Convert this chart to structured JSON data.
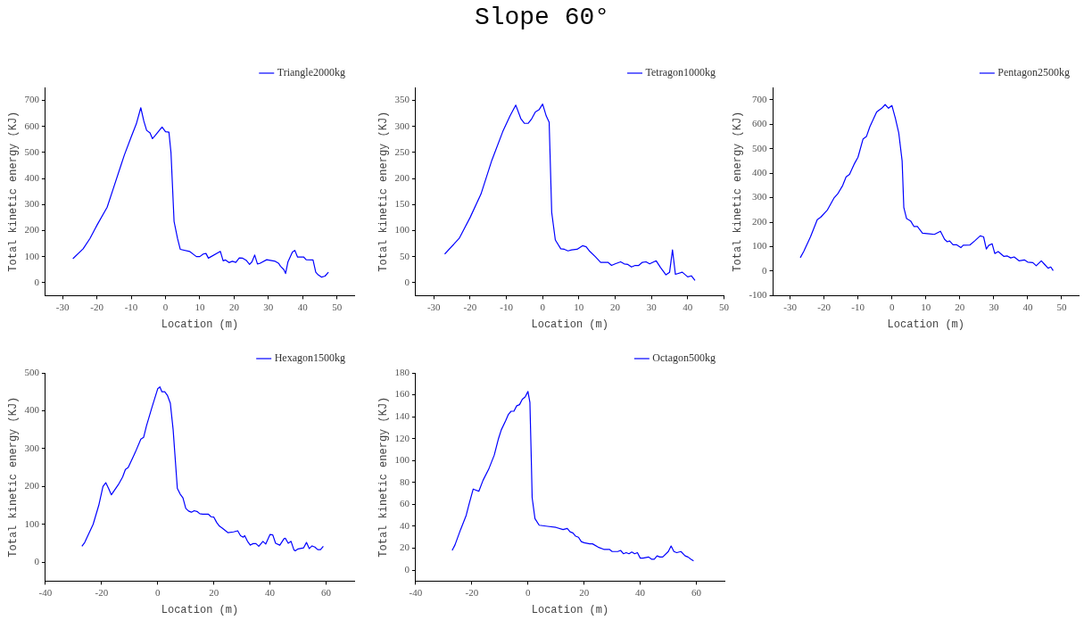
{
  "chart_data": [
    {
      "type": "line",
      "xlabel": "Location (m)",
      "ylabel": "Total kinetic energy (KJ)",
      "xlim": [
        -35,
        55
      ],
      "xticks": [
        -30,
        -20,
        -10,
        0,
        10,
        20,
        30,
        40,
        50
      ],
      "ylim": [
        -50,
        750
      ],
      "yticks": [
        0,
        100,
        200,
        300,
        400,
        500,
        600,
        700
      ],
      "grid": false,
      "legend": "top right",
      "marker": "none",
      "line_style": "solid",
      "series": [
        {
          "name": "Triangle2000kg",
          "color": "#0000ff",
          "x": [
            -27,
            -24,
            -22,
            -20,
            -17,
            -15,
            -13,
            -12,
            -10,
            -8.5,
            -7.2,
            -6.3,
            -5.5,
            -4.5,
            -3.8,
            -3,
            -1,
            0,
            1,
            1.6,
            2.5,
            3.5,
            4.3,
            7,
            9,
            10,
            11,
            11.8,
            12.5,
            16,
            16.8,
            17.5,
            18.5,
            19.5,
            20.5,
            21.5,
            22.5,
            23.5,
            24.5,
            25.2,
            26,
            26.8,
            27.5,
            29.5,
            32,
            33,
            33.5,
            34.5,
            35,
            35.7,
            37,
            37.7,
            38.5,
            40.3,
            41,
            43,
            43.8,
            44.5,
            45.5,
            46.5,
            47.5
          ],
          "values": [
            92,
            130,
            170,
            220,
            290,
            370,
            450,
            490,
            560,
            610,
            672,
            620,
            585,
            575,
            553,
            565,
            598,
            580,
            578,
            500,
            235,
            170,
            128,
            120,
            100,
            100,
            110,
            112,
            94,
            120,
            84,
            87,
            77,
            82,
            78,
            95,
            94,
            86,
            70,
            80,
            106,
            72,
            74,
            88,
            82,
            74,
            63,
            50,
            35,
            80,
            118,
            124,
            98,
            98,
            88,
            87,
            40,
            30,
            21,
            25,
            40
          ]
        }
      ]
    },
    {
      "type": "line",
      "title": "Slope 60°",
      "xlabel": "Location (m)",
      "ylabel": "Total kinetic energy (KJ)",
      "xlim": [
        -35,
        50
      ],
      "xticks": [
        -30,
        -20,
        -10,
        0,
        10,
        20,
        30,
        40,
        50
      ],
      "ylim": [
        -25,
        375
      ],
      "yticks": [
        0,
        50,
        100,
        150,
        200,
        250,
        300,
        350
      ],
      "grid": false,
      "legend": "top right",
      "marker": "none",
      "line_style": "solid",
      "series": [
        {
          "name": "Tetragon1000kg",
          "color": "#0000ff",
          "x": [
            -27,
            -23,
            -20,
            -17,
            -14,
            -11,
            -9,
            -7.4,
            -6,
            -5,
            -4,
            -3,
            -2,
            -1,
            0,
            1,
            1.8,
            2.5,
            3.5,
            5,
            6,
            7,
            8,
            9.5,
            11,
            12,
            13,
            14.5,
            16,
            18,
            19,
            20,
            21.5,
            22.5,
            23.5,
            24.5,
            25.5,
            26.5,
            27.5,
            28.5,
            29.5,
            31.3,
            32.5,
            34,
            35,
            35.8,
            36.6,
            38.5,
            40,
            41,
            42
          ],
          "values": [
            55,
            85,
            125,
            170,
            235,
            290,
            320,
            341,
            315,
            306,
            306,
            315,
            328,
            332,
            343,
            320,
            308,
            135,
            82,
            65,
            64,
            61,
            63,
            64,
            71,
            69,
            60,
            50,
            39,
            39,
            33,
            36,
            40,
            36,
            35,
            30,
            33,
            33,
            39,
            40,
            36,
            42,
            29,
            15,
            20,
            63,
            16,
            20,
            11,
            13,
            4
          ]
        }
      ]
    },
    {
      "type": "line",
      "xlabel": "Location (m)",
      "ylabel": "Total kinetic energy (KJ)",
      "xlim": [
        -35,
        55
      ],
      "xticks": [
        -30,
        -20,
        -10,
        0,
        10,
        20,
        30,
        40,
        50
      ],
      "ylim": [
        -100,
        750
      ],
      "yticks": [
        -100,
        0,
        100,
        200,
        300,
        400,
        500,
        600,
        700
      ],
      "grid": false,
      "legend": "top right",
      "marker": "none",
      "line_style": "solid",
      "series": [
        {
          "name": "Pentagon2500kg",
          "color": "#0000ff",
          "x": [
            -27,
            -26,
            -24,
            -22,
            -21,
            -19,
            -17,
            -16,
            -14.5,
            -13.5,
            -12.5,
            -11,
            -10,
            -8.5,
            -7.5,
            -6.5,
            -5.5,
            -4.5,
            -3,
            -2,
            -1,
            0,
            1,
            2,
            3,
            3.5,
            4.3,
            5.5,
            6.5,
            7.5,
            9,
            11,
            12.5,
            14.3,
            15.5,
            16.3,
            17,
            18,
            19,
            20.3,
            21,
            23,
            24.5,
            26,
            27,
            27.8,
            28.5,
            29.5,
            30.3,
            31.3,
            33,
            34,
            35,
            36,
            37.5,
            39,
            40,
            41.5,
            42.5,
            44,
            45,
            46,
            46.8,
            47.5
          ],
          "values": [
            55,
            80,
            140,
            210,
            220,
            250,
            300,
            315,
            350,
            385,
            395,
            440,
            465,
            540,
            550,
            590,
            620,
            650,
            665,
            680,
            665,
            676,
            625,
            565,
            450,
            260,
            215,
            205,
            182,
            182,
            155,
            152,
            150,
            163,
            130,
            120,
            123,
            108,
            108,
            96,
            106,
            107,
            125,
            144,
            140,
            90,
            105,
            112,
            72,
            80,
            60,
            62,
            54,
            58,
            42,
            46,
            37,
            35,
            22,
            42,
            27,
            12,
            17,
            2
          ]
        }
      ]
    },
    {
      "type": "line",
      "xlabel": "Location (m)",
      "ylabel": "Total kinetic energy (KJ)",
      "xlim": [
        -40,
        70
      ],
      "xticks": [
        -40,
        -20,
        0,
        20,
        40,
        60
      ],
      "ylim": [
        -50,
        500
      ],
      "yticks": [
        0,
        100,
        200,
        300,
        400,
        500
      ],
      "grid": false,
      "legend": "top right",
      "marker": "none",
      "line_style": "solid",
      "series": [
        {
          "name": "Hexagon1500kg",
          "color": "#0000ff",
          "x": [
            -27,
            -26,
            -23,
            -21,
            -19.5,
            -18.5,
            -17.5,
            -16.5,
            -14,
            -12.5,
            -11.5,
            -10.5,
            -8,
            -6,
            -5,
            -4,
            -2,
            0,
            0.8,
            1.5,
            2.5,
            3.5,
            4.5,
            5.5,
            7,
            8,
            9,
            10,
            11,
            12,
            13,
            14,
            15,
            16,
            18,
            19,
            20,
            21,
            22,
            23,
            25,
            27,
            28.5,
            29.5,
            30.5,
            31,
            32,
            33,
            34,
            35,
            36,
            37.5,
            38.5,
            40,
            41,
            42,
            43.5,
            45,
            45.5,
            46.5,
            47.5,
            48.5,
            49,
            50,
            52,
            53,
            54,
            55,
            56,
            57,
            58,
            59
          ],
          "values": [
            42,
            52,
            100,
            150,
            200,
            210,
            195,
            178,
            205,
            225,
            245,
            250,
            290,
            325,
            330,
            360,
            410,
            458,
            463,
            450,
            450,
            440,
            420,
            350,
            195,
            180,
            170,
            142,
            135,
            132,
            136,
            134,
            128,
            127,
            127,
            120,
            119,
            105,
            95,
            90,
            78,
            80,
            83,
            70,
            66,
            70,
            55,
            45,
            49,
            49,
            42,
            55,
            48,
            73,
            72,
            50,
            45,
            62,
            63,
            50,
            55,
            33,
            30,
            35,
            38,
            52,
            36,
            43,
            40,
            33,
            33,
            42
          ]
        }
      ]
    },
    {
      "type": "line",
      "xlabel": "Location (m)",
      "ylabel": "Total kinetic energy (KJ)",
      "xlim": [
        -40,
        70
      ],
      "xticks": [
        -40,
        -20,
        0,
        20,
        40,
        60
      ],
      "ylim": [
        -10,
        180
      ],
      "yticks": [
        0,
        20,
        40,
        60,
        80,
        100,
        120,
        140,
        160,
        180
      ],
      "grid": false,
      "legend": "top right",
      "marker": "none",
      "line_style": "solid",
      "series": [
        {
          "name": "Octagon500kg",
          "color": "#0000ff",
          "x": [
            -27,
            -26,
            -24,
            -22,
            -21,
            -19.5,
            -18.5,
            -17.5,
            -16,
            -14,
            -12,
            -10.5,
            -9.5,
            -8,
            -7,
            -6,
            -5,
            -4,
            -3,
            -2,
            -1,
            0,
            0.7,
            1.2,
            1.5,
            2.5,
            4,
            7,
            10,
            12.5,
            14,
            15,
            16,
            17,
            18,
            19,
            20,
            22,
            23,
            25,
            27,
            29,
            30,
            32,
            33,
            34,
            35,
            36,
            37,
            38,
            39,
            40,
            41,
            43,
            44,
            45,
            46,
            47,
            48,
            50,
            51,
            52,
            53,
            54.5,
            56,
            57,
            58,
            59
          ],
          "values": [
            18,
            23,
            37,
            50,
            60,
            74,
            73,
            72,
            82,
            92,
            105,
            120,
            128,
            136,
            142,
            145,
            145,
            150,
            151,
            156,
            158,
            163,
            153,
            100,
            66,
            47,
            41,
            40,
            39,
            37,
            38,
            35,
            34,
            31,
            30,
            26,
            25,
            24,
            24,
            21,
            19,
            19,
            17,
            17,
            18,
            15,
            16,
            15,
            16.5,
            15,
            16,
            11,
            11,
            12,
            10,
            10,
            13,
            12,
            12,
            17,
            22,
            17,
            16,
            17,
            13,
            12,
            10,
            8.5
          ]
        }
      ]
    }
  ]
}
